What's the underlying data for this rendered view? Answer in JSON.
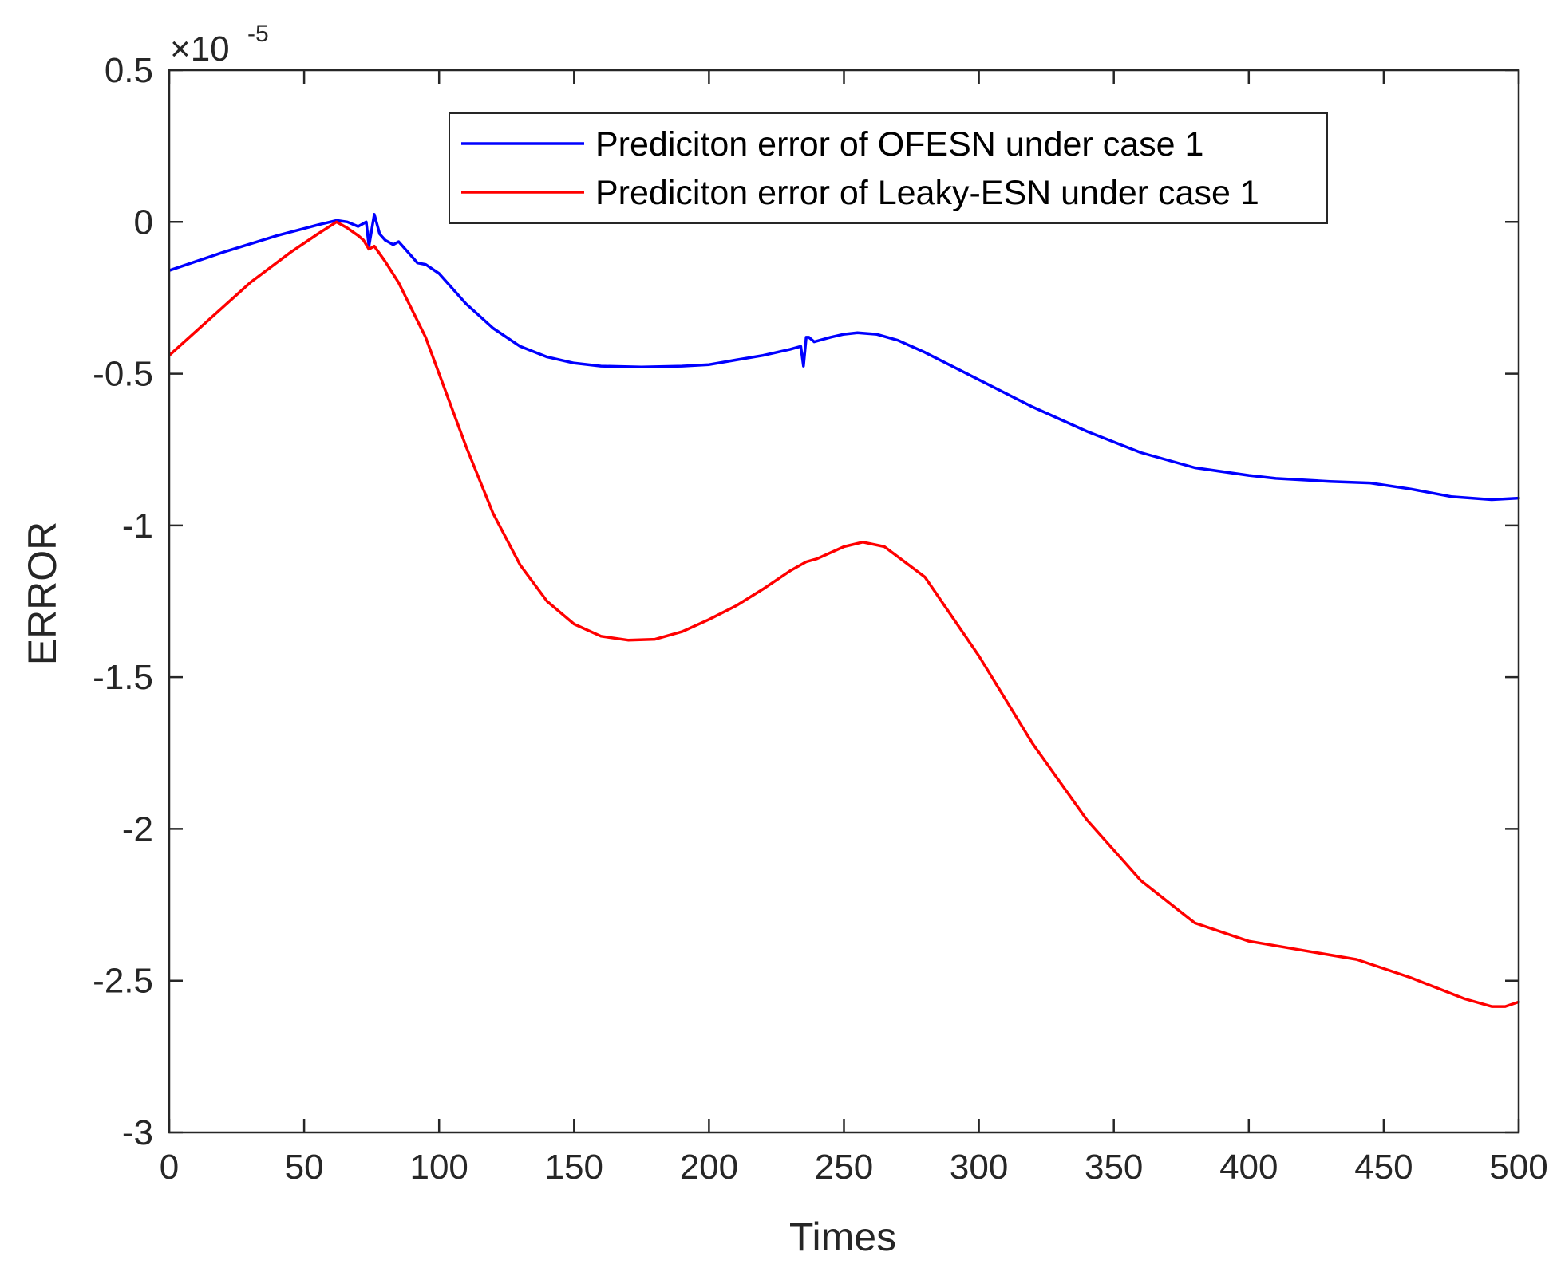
{
  "chart_data": {
    "type": "line",
    "xlabel": "Times",
    "ylabel": "ERROR",
    "xlim": [
      0,
      500
    ],
    "ylim": [
      -3,
      0.5
    ],
    "y_exponent_base": "×10",
    "y_exponent_power": "-5",
    "xticks": [
      0,
      50,
      100,
      150,
      200,
      250,
      300,
      350,
      400,
      450,
      500
    ],
    "yticks": [
      0.5,
      0,
      -0.5,
      -1,
      -1.5,
      -2,
      -2.5,
      -3
    ],
    "xtick_labels": [
      "0",
      "50",
      "100",
      "150",
      "200",
      "250",
      "300",
      "350",
      "400",
      "450",
      "500"
    ],
    "ytick_labels": [
      "0.5",
      "0",
      "-0.5",
      "-1",
      "-1.5",
      "-2",
      "-2.5",
      "-3"
    ],
    "legend_location": "top-right",
    "series": [
      {
        "name": "Prediciton error of OFESN under case 1",
        "color": "#0000ff",
        "points": [
          [
            0,
            -0.16
          ],
          [
            20,
            -0.1
          ],
          [
            40,
            -0.045
          ],
          [
            55,
            -0.01
          ],
          [
            62,
            0.005
          ],
          [
            66,
            0.0
          ],
          [
            70,
            -0.015
          ],
          [
            73,
            0.0
          ],
          [
            74,
            -0.08
          ],
          [
            76,
            0.025
          ],
          [
            78,
            -0.04
          ],
          [
            80,
            -0.06
          ],
          [
            83,
            -0.075
          ],
          [
            85,
            -0.065
          ],
          [
            88,
            -0.095
          ],
          [
            92,
            -0.135
          ],
          [
            95,
            -0.14
          ],
          [
            100,
            -0.17
          ],
          [
            110,
            -0.27
          ],
          [
            120,
            -0.35
          ],
          [
            130,
            -0.41
          ],
          [
            140,
            -0.445
          ],
          [
            150,
            -0.465
          ],
          [
            160,
            -0.475
          ],
          [
            175,
            -0.478
          ],
          [
            190,
            -0.475
          ],
          [
            200,
            -0.47
          ],
          [
            210,
            -0.455
          ],
          [
            220,
            -0.44
          ],
          [
            230,
            -0.42
          ],
          [
            234,
            -0.41
          ],
          [
            235,
            -0.475
          ],
          [
            236,
            -0.38
          ],
          [
            237,
            -0.38
          ],
          [
            239,
            -0.395
          ],
          [
            245,
            -0.38
          ],
          [
            250,
            -0.37
          ],
          [
            255,
            -0.365
          ],
          [
            262,
            -0.37
          ],
          [
            270,
            -0.39
          ],
          [
            280,
            -0.43
          ],
          [
            300,
            -0.52
          ],
          [
            320,
            -0.61
          ],
          [
            340,
            -0.69
          ],
          [
            360,
            -0.76
          ],
          [
            380,
            -0.81
          ],
          [
            400,
            -0.835
          ],
          [
            405,
            -0.84
          ],
          [
            410,
            -0.845
          ],
          [
            430,
            -0.855
          ],
          [
            445,
            -0.86
          ],
          [
            460,
            -0.88
          ],
          [
            475,
            -0.905
          ],
          [
            490,
            -0.915
          ],
          [
            500,
            -0.91
          ]
        ]
      },
      {
        "name": "Prediciton error of Leaky-ESN under case 1",
        "color": "#ff0000",
        "points": [
          [
            0,
            -0.44
          ],
          [
            15,
            -0.32
          ],
          [
            30,
            -0.2
          ],
          [
            45,
            -0.1
          ],
          [
            55,
            -0.04
          ],
          [
            62,
            0.0
          ],
          [
            66,
            -0.02
          ],
          [
            70,
            -0.045
          ],
          [
            72,
            -0.06
          ],
          [
            74,
            -0.09
          ],
          [
            76,
            -0.08
          ],
          [
            80,
            -0.13
          ],
          [
            85,
            -0.2
          ],
          [
            90,
            -0.29
          ],
          [
            95,
            -0.38
          ],
          [
            100,
            -0.5
          ],
          [
            110,
            -0.74
          ],
          [
            120,
            -0.96
          ],
          [
            130,
            -1.13
          ],
          [
            140,
            -1.25
          ],
          [
            150,
            -1.325
          ],
          [
            160,
            -1.365
          ],
          [
            170,
            -1.378
          ],
          [
            180,
            -1.375
          ],
          [
            190,
            -1.35
          ],
          [
            200,
            -1.31
          ],
          [
            210,
            -1.265
          ],
          [
            220,
            -1.21
          ],
          [
            230,
            -1.15
          ],
          [
            236,
            -1.12
          ],
          [
            240,
            -1.11
          ],
          [
            250,
            -1.07
          ],
          [
            257,
            -1.055
          ],
          [
            265,
            -1.07
          ],
          [
            280,
            -1.17
          ],
          [
            300,
            -1.43
          ],
          [
            320,
            -1.72
          ],
          [
            340,
            -1.97
          ],
          [
            360,
            -2.17
          ],
          [
            380,
            -2.31
          ],
          [
            400,
            -2.37
          ],
          [
            420,
            -2.4
          ],
          [
            440,
            -2.43
          ],
          [
            460,
            -2.49
          ],
          [
            480,
            -2.56
          ],
          [
            490,
            -2.585
          ],
          [
            495,
            -2.585
          ],
          [
            500,
            -2.57
          ]
        ]
      }
    ]
  }
}
